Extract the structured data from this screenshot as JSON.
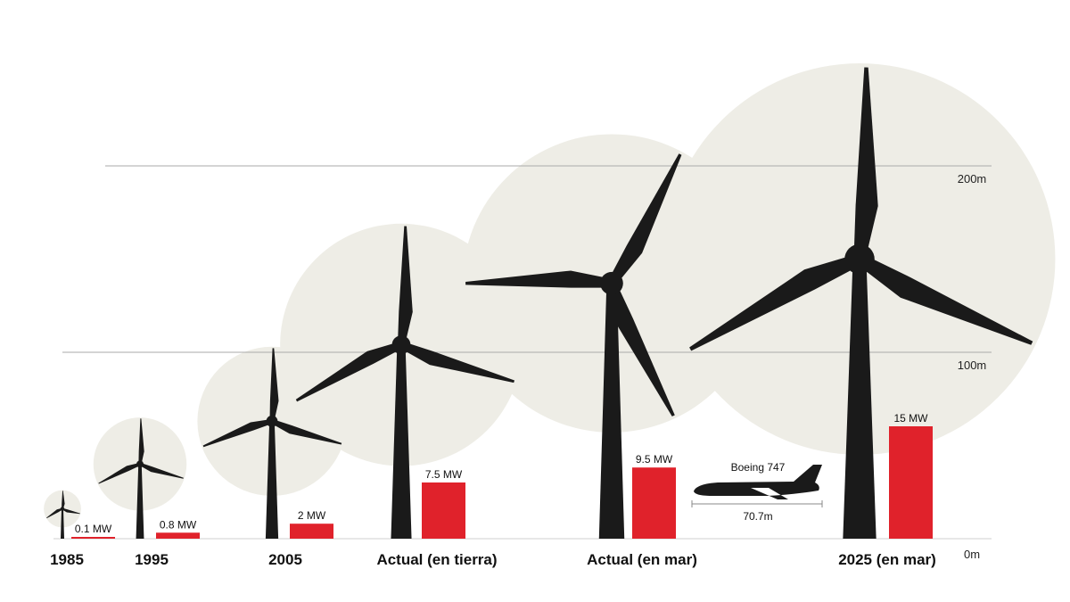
{
  "chart_data": {
    "type": "bar",
    "title": "",
    "xlabel": "",
    "ylabel": "",
    "ylim": [
      0,
      200
    ],
    "y_ticks": [
      "0m",
      "100m",
      "200m"
    ],
    "grid": true,
    "categories": [
      "1985",
      "1995",
      "2005",
      "Actual (en tierra)",
      "Actual (en mar)",
      "2025 (en mar)"
    ],
    "series": [
      {
        "values": [
          0.1,
          0.8,
          2,
          7.5,
          9.5,
          15
        ],
        "data_labels": [
          "0.1 MW",
          "0.8 MW",
          "2 MW",
          "7.5 MW",
          "9.5 MW",
          "15 MW"
        ]
      }
    ],
    "hub_height_m": [
      16,
      40,
      63,
      104,
      137,
      150
    ],
    "rotor_diameter_m": [
      20,
      50,
      80,
      130,
      160,
      210
    ],
    "annotation": {
      "label": "Boeing 747",
      "length_label": "70.7m",
      "length_m": 70.7
    },
    "colors": {
      "bar": "#e0222b",
      "turbine": "#1a1a1a",
      "rotor_disk": "#eeede6",
      "grid": "#aaaaaa"
    }
  }
}
